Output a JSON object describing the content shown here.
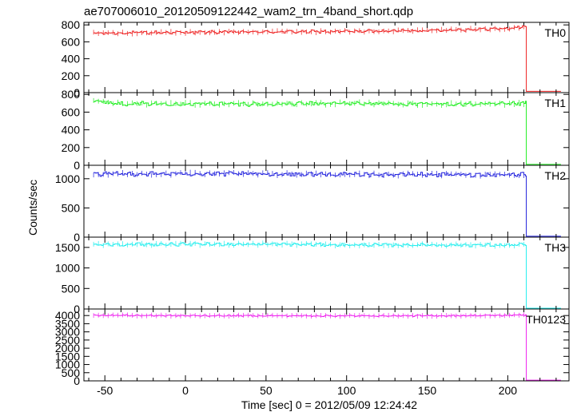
{
  "chart_data": {
    "type": "line",
    "title": "ae707006010_20120509122442_wam2_trn_4band_short.qdp",
    "xlabel": "Time [sec] 0 = 2012/05/09 12:24:42",
    "ylabel": "Counts/sec",
    "xlim": [
      -63,
      238
    ],
    "xticks": [
      -50,
      0,
      50,
      100,
      150,
      200
    ],
    "grid": false,
    "legend": "none",
    "drop_time": 211.5,
    "data_start": -57,
    "data_end": 233,
    "panels": [
      {
        "name": "TH0",
        "color": "#ee2222",
        "ylim": [
          0,
          830
        ],
        "yticks": [
          0,
          200,
          400,
          600,
          800
        ],
        "points": [
          [
            -57,
            700
          ],
          [
            -40,
            705
          ],
          [
            0,
            712
          ],
          [
            50,
            718
          ],
          [
            100,
            722
          ],
          [
            150,
            735
          ],
          [
            200,
            758
          ],
          [
            211,
            785
          ]
        ],
        "noise": 14,
        "after_drop": [
          [
            211.5,
            95
          ],
          [
            213,
            15
          ],
          [
            233,
            15
          ]
        ]
      },
      {
        "name": "TH1",
        "color": "#22ee22",
        "ylim": [
          0,
          820
        ],
        "yticks": [
          0,
          200,
          400,
          600,
          800
        ],
        "points": [
          [
            -57,
            725
          ],
          [
            -40,
            695
          ],
          [
            0,
            695
          ],
          [
            50,
            690
          ],
          [
            100,
            700
          ],
          [
            150,
            690
          ],
          [
            200,
            690
          ],
          [
            211,
            700
          ]
        ],
        "noise": 18,
        "after_drop": [
          [
            211.5,
            70
          ],
          [
            213,
            10
          ],
          [
            233,
            10
          ]
        ]
      },
      {
        "name": "TH2",
        "color": "#2222dd",
        "ylim": [
          0,
          1230
        ],
        "yticks": [
          0,
          500,
          1000
        ],
        "points": [
          [
            -57,
            1080
          ],
          [
            0,
            1085
          ],
          [
            50,
            1080
          ],
          [
            100,
            1075
          ],
          [
            150,
            1070
          ],
          [
            200,
            1070
          ],
          [
            211,
            1075
          ]
        ],
        "noise": 28,
        "after_drop": [
          [
            211.5,
            70
          ],
          [
            213,
            15
          ],
          [
            233,
            15
          ]
        ]
      },
      {
        "name": "TH3",
        "color": "#22eeee",
        "ylim": [
          0,
          1750
        ],
        "yticks": [
          0,
          500,
          1000,
          1500
        ],
        "points": [
          [
            -57,
            1570
          ],
          [
            0,
            1575
          ],
          [
            50,
            1580
          ],
          [
            100,
            1560
          ],
          [
            150,
            1560
          ],
          [
            200,
            1555
          ],
          [
            211,
            1565
          ]
        ],
        "noise": 30,
        "after_drop": [
          [
            211.5,
            130
          ],
          [
            213,
            20
          ],
          [
            233,
            20
          ]
        ]
      },
      {
        "name": "TH0123",
        "color": "#ee22ee",
        "ylim": [
          0,
          4400
        ],
        "yticks": [
          0,
          500,
          1000,
          1500,
          2000,
          2500,
          3000,
          3500,
          4000
        ],
        "points": [
          [
            -57,
            4020
          ],
          [
            0,
            3990
          ],
          [
            50,
            3990
          ],
          [
            100,
            3980
          ],
          [
            150,
            3985
          ],
          [
            200,
            4010
          ],
          [
            211,
            4050
          ]
        ],
        "noise": 35,
        "after_drop": [
          [
            211.5,
            300
          ],
          [
            213,
            40
          ],
          [
            233,
            40
          ]
        ]
      }
    ]
  }
}
